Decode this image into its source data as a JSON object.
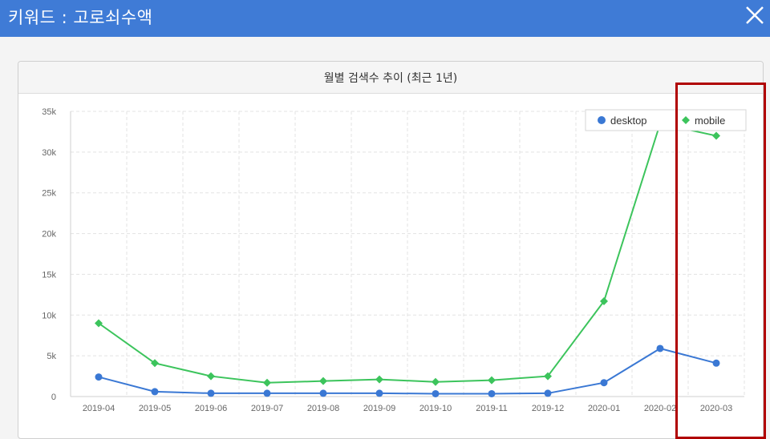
{
  "header": {
    "title": "키워드 : 고로쇠수액",
    "close_icon": "close-icon",
    "background": "#3f7bd6"
  },
  "panel": {
    "title": "월별 검색수 추이 (최근 1년)"
  },
  "highlight": {
    "color": "#b00000",
    "target_category": "2020-03"
  },
  "chart_data": {
    "type": "line",
    "categories": [
      "2019-04",
      "2019-05",
      "2019-06",
      "2019-07",
      "2019-08",
      "2019-09",
      "2019-10",
      "2019-11",
      "2019-12",
      "2020-01",
      "2020-02",
      "2020-03"
    ],
    "y_ticks": [
      "0",
      "5k",
      "10k",
      "15k",
      "20k",
      "25k",
      "30k",
      "35k"
    ],
    "ylim": [
      0,
      35000
    ],
    "grid": true,
    "legend_position": "top-right",
    "series": [
      {
        "name": "desktop",
        "color": "#3a78d4",
        "marker": "circle",
        "values": [
          2400,
          600,
          400,
          400,
          400,
          400,
          350,
          350,
          400,
          1700,
          5900,
          4100
        ]
      },
      {
        "name": "mobile",
        "color": "#3cc45c",
        "marker": "diamond",
        "values": [
          9000,
          4100,
          2500,
          1700,
          1900,
          2100,
          1800,
          2000,
          2500,
          11700,
          33500,
          32000
        ]
      }
    ]
  }
}
